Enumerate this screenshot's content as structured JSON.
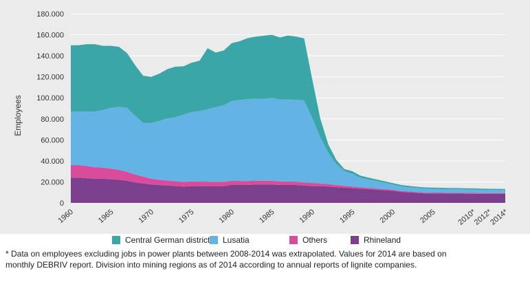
{
  "chart_data": {
    "type": "area",
    "stacked": true,
    "ylabel": "Employees",
    "ylim": [
      0,
      180000
    ],
    "yticks": [
      "0",
      "20.000",
      "40.000",
      "60.000",
      "80.000",
      "100.000",
      "120.000",
      "140.000",
      "160.000",
      "180.000"
    ],
    "xlim": [
      1960,
      2014
    ],
    "xticks": [
      {
        "year": 1960,
        "label": "1960"
      },
      {
        "year": 1965,
        "label": "1965"
      },
      {
        "year": 1970,
        "label": "1970"
      },
      {
        "year": 1975,
        "label": "1975"
      },
      {
        "year": 1980,
        "label": "1980"
      },
      {
        "year": 1985,
        "label": "1985"
      },
      {
        "year": 1990,
        "label": "1990"
      },
      {
        "year": 1995,
        "label": "1995"
      },
      {
        "year": 2000,
        "label": "2000"
      },
      {
        "year": 2005,
        "label": "2005"
      },
      {
        "year": 2010,
        "label": "2010*"
      },
      {
        "year": 2012,
        "label": "2012*"
      },
      {
        "year": 2014,
        "label": "2014*"
      }
    ],
    "x": [
      1960,
      1961,
      1962,
      1963,
      1964,
      1965,
      1966,
      1967,
      1968,
      1969,
      1970,
      1971,
      1972,
      1973,
      1974,
      1975,
      1976,
      1977,
      1978,
      1979,
      1980,
      1981,
      1982,
      1983,
      1984,
      1985,
      1986,
      1987,
      1988,
      1989,
      1990,
      1991,
      1992,
      1993,
      1994,
      1995,
      1996,
      1997,
      1998,
      1999,
      2000,
      2001,
      2002,
      2003,
      2004,
      2005,
      2006,
      2007,
      2008,
      2009,
      2010,
      2011,
      2012,
      2013,
      2014
    ],
    "series": [
      {
        "name": "Rhineland",
        "color": "#7b3f8e",
        "values": [
          24000,
          24000,
          23500,
          23000,
          23000,
          22500,
          22000,
          21000,
          19500,
          18500,
          17500,
          17000,
          16500,
          16000,
          15500,
          16000,
          16000,
          16000,
          16000,
          16000,
          17000,
          17000,
          17000,
          17500,
          17500,
          17500,
          17000,
          17000,
          17000,
          16500,
          16000,
          16000,
          15500,
          15000,
          14500,
          14000,
          13500,
          13000,
          12500,
          12000,
          11500,
          10500,
          10000,
          9500,
          9000,
          9000,
          9000,
          8900,
          8900,
          8800,
          8700,
          8600,
          8500,
          8500,
          8500
        ]
      },
      {
        "name": "Others",
        "color": "#d84c9b",
        "values": [
          12000,
          12000,
          11500,
          11000,
          10500,
          10000,
          9500,
          8500,
          7500,
          6500,
          5500,
          5000,
          4800,
          4600,
          4500,
          4400,
          4300,
          4200,
          4100,
          4000,
          4000,
          3900,
          3800,
          3700,
          3600,
          3500,
          3400,
          3300,
          3200,
          3100,
          3000,
          2600,
          2300,
          2000,
          1800,
          1600,
          1400,
          1300,
          1200,
          1100,
          1000,
          900,
          900,
          900,
          900,
          900,
          800,
          800,
          800,
          800,
          800,
          800,
          800,
          800,
          800
        ]
      },
      {
        "name": "Lusatia",
        "color": "#63b4e4",
        "values": [
          51000,
          51000,
          52000,
          53000,
          55000,
          58000,
          60000,
          61000,
          56000,
          51000,
          53000,
          56000,
          59000,
          61000,
          64000,
          66000,
          67000,
          69000,
          71000,
          73000,
          76000,
          77000,
          78000,
          78000,
          78000,
          79000,
          78000,
          78000,
          78000,
          78000,
          62000,
          44000,
          30000,
          20000,
          14000,
          12000,
          9000,
          8000,
          7000,
          6000,
          5000,
          4500,
          4000,
          3800,
          3600,
          3500,
          3400,
          3300,
          3300,
          3200,
          3200,
          3100,
          3100,
          3000,
          3000
        ]
      },
      {
        "name": "Central German district",
        "color": "#3aa6a7",
        "values": [
          63000,
          63000,
          64000,
          64000,
          61000,
          59000,
          57000,
          52000,
          48000,
          45000,
          44000,
          45000,
          47000,
          48000,
          46000,
          47000,
          48000,
          58000,
          52000,
          52000,
          55000,
          56000,
          58000,
          59000,
          60000,
          60000,
          59000,
          61000,
          60000,
          59000,
          37000,
          18000,
          8000,
          4000,
          2000,
          2500,
          2000,
          1800,
          1600,
          1500,
          1400,
          1300,
          1300,
          1200,
          1200,
          1200,
          1200,
          1150,
          1150,
          1100,
          1100,
          1100,
          1050,
          1050,
          1000
        ]
      }
    ],
    "legend_order": [
      "Central German district",
      "Lusatia",
      "Others",
      "Rhineland"
    ],
    "legend_position": "bottom",
    "grid": true
  },
  "footnote": {
    "line1": "* Data on employees excluding jobs in power plants between 2008-2014 was extrapolated. Values for 2014 are based on",
    "line2": "monthly DEBRIV report. Division into mining regions as of 2014 according to annual reports of lignite companies."
  }
}
